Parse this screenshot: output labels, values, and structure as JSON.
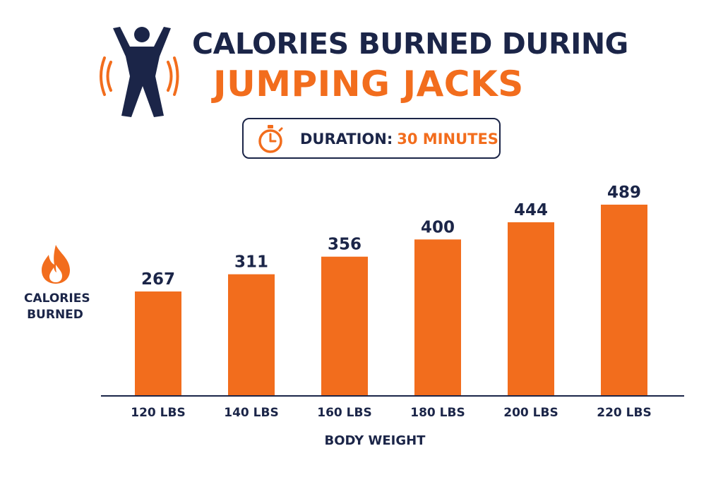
{
  "title": {
    "line1": "CALORIES BURNED DURING",
    "line2": "JUMPING JACKS"
  },
  "duration": {
    "label": "DURATION:",
    "value": "30 MINUTES"
  },
  "icons": {
    "header": "jumping-jack-figure-icon",
    "duration": "stopwatch-icon",
    "ylabel": "flame-icon"
  },
  "colors": {
    "accent": "#f26d1d",
    "navy": "#1b2548"
  },
  "chart_data": {
    "type": "bar",
    "categories": [
      "120 LBS",
      "140 LBS",
      "160 LBS",
      "180 LBS",
      "200 LBS",
      "220 LBS"
    ],
    "values": [
      267,
      311,
      356,
      400,
      444,
      489
    ],
    "data_labels": [
      "267",
      "311",
      "356",
      "400",
      "444",
      "489"
    ],
    "xlabel": "BODY WEIGHT",
    "ylabel_line1": "CALORIES",
    "ylabel_line2": "BURNED",
    "ylim": [
      0,
      489
    ],
    "grid": false,
    "legend": "none"
  }
}
